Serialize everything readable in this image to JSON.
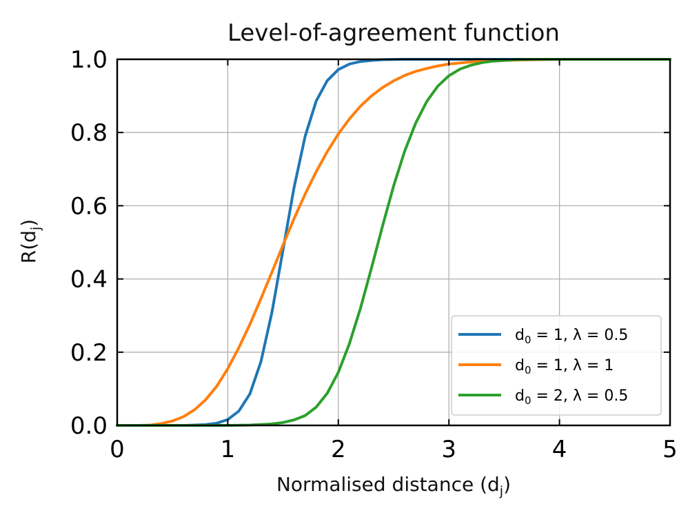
{
  "chart_data": {
    "type": "line",
    "title": "Level-of-agreement function",
    "xlabel": "Normalised distance (d",
    "xlabel_sub": "j",
    "xlabel_close": ")",
    "ylabel": "R(d",
    "ylabel_sub": "j",
    "ylabel_close": ")",
    "xlim": [
      0,
      5
    ],
    "ylim": [
      0,
      1
    ],
    "xticks": [
      0,
      1,
      2,
      3,
      4,
      5
    ],
    "xtick_labels": [
      "0",
      "1",
      "2",
      "3",
      "4",
      "5"
    ],
    "yticks": [
      0,
      0.2,
      0.4,
      0.6,
      0.8,
      1.0
    ],
    "ytick_labels": [
      "0.0",
      "0.2",
      "0.4",
      "0.6",
      "0.8",
      "1.0"
    ],
    "grid": true,
    "legend_position": "bottom-right",
    "series": [
      {
        "name": "d0 = 1, λ = 0.5",
        "legend": {
          "d_sub": "0",
          "d_value": "1",
          "lambda": "0.5"
        },
        "color": "#1f77b4",
        "x": [
          0,
          0.1,
          0.2,
          0.3,
          0.4,
          0.5,
          0.6,
          0.7,
          0.8,
          0.9,
          1.0,
          1.1,
          1.2,
          1.3,
          1.4,
          1.5,
          1.6,
          1.7,
          1.8,
          1.9,
          2.0,
          2.1,
          2.2,
          2.3,
          2.4,
          2.5,
          2.6,
          2.7,
          2.8,
          3.0,
          3.2,
          3.5,
          4.0,
          4.5,
          5.0
        ],
        "y": [
          0,
          0,
          0,
          0,
          0,
          0,
          0,
          0.001,
          0.002,
          0.006,
          0.016,
          0.039,
          0.086,
          0.174,
          0.31,
          0.48,
          0.65,
          0.79,
          0.886,
          0.942,
          0.972,
          0.987,
          0.994,
          0.997,
          0.999,
          0.9995,
          1,
          1,
          1,
          1,
          1,
          1,
          1,
          1,
          1
        ]
      },
      {
        "name": "d0 = 1, λ = 1",
        "legend": {
          "d_sub": "0",
          "d_value": "1",
          "lambda": "1"
        },
        "color": "#ff7f0e",
        "x": [
          0,
          0.2,
          0.3,
          0.4,
          0.5,
          0.6,
          0.7,
          0.8,
          0.9,
          1.0,
          1.1,
          1.2,
          1.3,
          1.4,
          1.5,
          1.6,
          1.7,
          1.8,
          1.9,
          2.0,
          2.1,
          2.2,
          2.3,
          2.4,
          2.5,
          2.6,
          2.7,
          2.8,
          2.9,
          3.0,
          3.2,
          3.4,
          3.6,
          3.8,
          4.0,
          4.5,
          5.0
        ],
        "y": [
          0,
          0,
          0.001,
          0.005,
          0.012,
          0.024,
          0.043,
          0.07,
          0.107,
          0.155,
          0.212,
          0.276,
          0.346,
          0.419,
          0.493,
          0.565,
          0.632,
          0.693,
          0.748,
          0.796,
          0.837,
          0.872,
          0.9,
          0.923,
          0.941,
          0.956,
          0.967,
          0.975,
          0.982,
          0.987,
          0.993,
          0.996,
          0.998,
          0.999,
          1,
          1,
          1
        ]
      },
      {
        "name": "d0 = 2, λ = 0.5",
        "legend": {
          "d_sub": "0",
          "d_value": "2",
          "lambda": "0.5"
        },
        "color": "#2ca02c",
        "x": [
          0,
          1.0,
          1.2,
          1.4,
          1.5,
          1.6,
          1.7,
          1.8,
          1.9,
          2.0,
          2.1,
          2.2,
          2.3,
          2.4,
          2.5,
          2.6,
          2.7,
          2.8,
          2.9,
          3.0,
          3.1,
          3.2,
          3.3,
          3.4,
          3.5,
          3.6,
          3.8,
          4.0,
          4.5,
          5.0
        ],
        "y": [
          0,
          0,
          0.001,
          0.004,
          0.008,
          0.015,
          0.027,
          0.05,
          0.088,
          0.145,
          0.223,
          0.32,
          0.43,
          0.545,
          0.654,
          0.749,
          0.826,
          0.885,
          0.927,
          0.955,
          0.973,
          0.984,
          0.991,
          0.995,
          0.997,
          0.999,
          1,
          1,
          1,
          1
        ]
      }
    ]
  }
}
